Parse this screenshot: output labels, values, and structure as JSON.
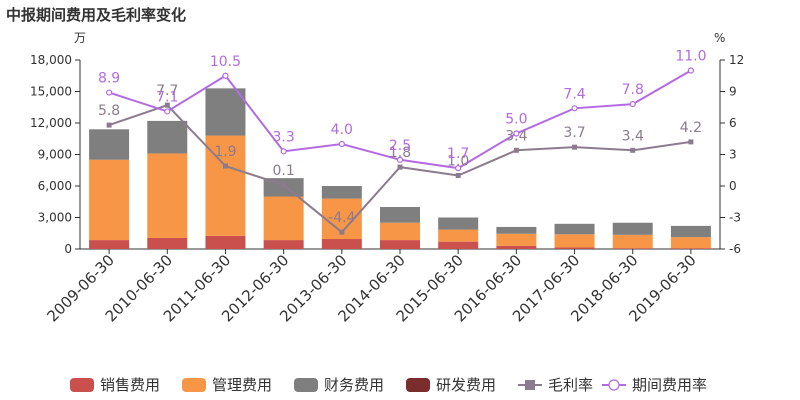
{
  "chart_data": {
    "type": "bar",
    "title": "中报期间费用及毛利率变化",
    "left_axis_unit": "万",
    "right_axis_unit": "%",
    "categories": [
      "2009-06-30",
      "2010-06-30",
      "2011-06-30",
      "2012-06-30",
      "2013-06-30",
      "2014-06-30",
      "2015-06-30",
      "2016-06-30",
      "2017-06-30",
      "2018-06-30",
      "2019-06-30"
    ],
    "left_axis": {
      "min": 0,
      "max": 18000,
      "ticks": [
        "0",
        "3,000",
        "6,000",
        "9,000",
        "12,000",
        "15,000",
        "18,000"
      ]
    },
    "right_axis": {
      "min": -6,
      "max": 12,
      "ticks": [
        "-6",
        "-3",
        "0",
        "3",
        "6",
        "9",
        "12"
      ]
    },
    "stacked_series": [
      {
        "name": "销售费用",
        "color": "#c9504c",
        "values": [
          850,
          1050,
          1250,
          850,
          950,
          850,
          700,
          300,
          150,
          80,
          80
        ]
      },
      {
        "name": "管理费用",
        "color": "#f79646",
        "values": [
          7650,
          8050,
          9550,
          4150,
          3850,
          1650,
          1150,
          1150,
          1250,
          1270,
          1050
        ]
      },
      {
        "name": "财务费用",
        "color": "#7f7f7f",
        "values": [
          2900,
          3100,
          4500,
          1750,
          1200,
          1500,
          1150,
          650,
          1000,
          1150,
          1070
        ]
      },
      {
        "name": "研发费用",
        "color": "#7b2c2c",
        "values": [
          0,
          0,
          0,
          0,
          0,
          0,
          0,
          0,
          0,
          0,
          0
        ]
      }
    ],
    "line_series": [
      {
        "name": "毛利率",
        "color": "#8c7b8e",
        "marker": "square",
        "values": [
          5.8,
          7.7,
          1.9,
          0.1,
          -4.4,
          1.8,
          1.0,
          3.4,
          3.7,
          3.4,
          4.2
        ],
        "labels": [
          "5.8",
          "7.7",
          "1.9",
          "0.1",
          "-4.4",
          "1.8",
          "1.0",
          "3.4",
          "3.7",
          "3.4",
          "4.2"
        ]
      },
      {
        "name": "期间费用率",
        "color": "#b36ae2",
        "marker": "circle",
        "values": [
          8.9,
          7.1,
          10.5,
          3.3,
          4.0,
          2.5,
          1.7,
          5.0,
          7.4,
          7.8,
          11.0
        ],
        "labels": [
          "8.9",
          "7.1",
          "10.5",
          "3.3",
          "4.0",
          "2.5",
          "1.7",
          "5.0",
          "7.4",
          "7.8",
          "11.0"
        ]
      }
    ],
    "legend_position": "bottom",
    "grid": false
  }
}
